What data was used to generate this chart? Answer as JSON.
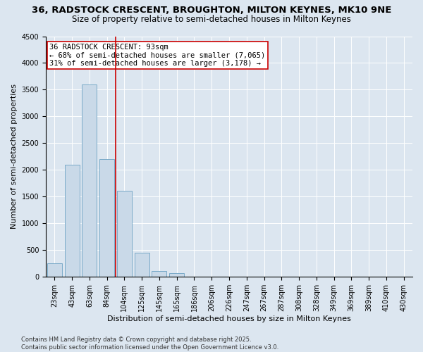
{
  "title1": "36, RADSTOCK CRESCENT, BROUGHTON, MILTON KEYNES, MK10 9NE",
  "title2": "Size of property relative to semi-detached houses in Milton Keynes",
  "xlabel": "Distribution of semi-detached houses by size in Milton Keynes",
  "ylabel": "Number of semi-detached properties",
  "footer": "Contains HM Land Registry data © Crown copyright and database right 2025.\nContains public sector information licensed under the Open Government Licence v3.0.",
  "bar_categories": [
    "23sqm",
    "43sqm",
    "63sqm",
    "84sqm",
    "104sqm",
    "125sqm",
    "145sqm",
    "165sqm",
    "186sqm",
    "206sqm",
    "226sqm",
    "247sqm",
    "267sqm",
    "287sqm",
    "308sqm",
    "328sqm",
    "349sqm",
    "369sqm",
    "389sqm",
    "410sqm",
    "430sqm"
  ],
  "bar_values": [
    250,
    2100,
    3600,
    2200,
    1600,
    450,
    100,
    60,
    0,
    0,
    0,
    0,
    0,
    0,
    0,
    0,
    0,
    0,
    0,
    0,
    0
  ],
  "bar_color": "#c9d9e8",
  "bar_edge_color": "#7aaac8",
  "ylim": [
    0,
    4500
  ],
  "yticks": [
    0,
    500,
    1000,
    1500,
    2000,
    2500,
    3000,
    3500,
    4000,
    4500
  ],
  "subject_line_color": "#cc0000",
  "annotation_text": "36 RADSTOCK CRESCENT: 93sqm\n← 68% of semi-detached houses are smaller (7,065)\n31% of semi-detached houses are larger (3,178) →",
  "annotation_box_color": "#cc0000",
  "bg_color": "#dce6f0",
  "plot_bg_color": "#dce6f0",
  "grid_color": "#ffffff",
  "title1_fontsize": 9.5,
  "title2_fontsize": 8.5,
  "annotation_fontsize": 7.5,
  "xlabel_fontsize": 8,
  "ylabel_fontsize": 8,
  "tick_fontsize": 7,
  "footer_fontsize": 6
}
